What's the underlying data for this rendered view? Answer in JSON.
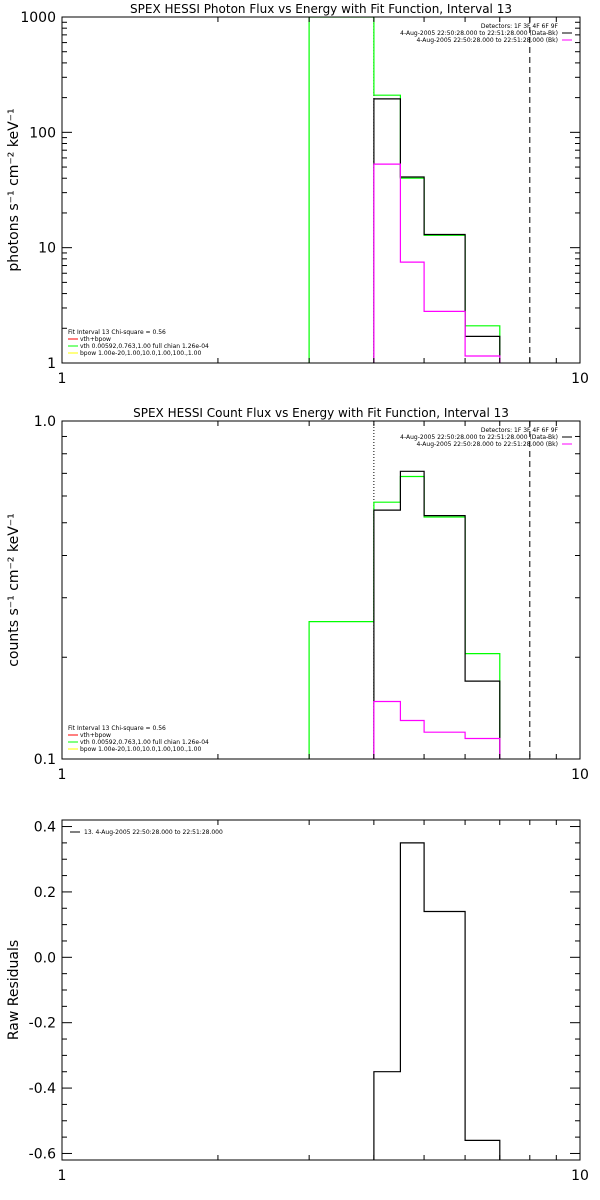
{
  "colors": {
    "data_black": "#000000",
    "bk_magenta": "#ff00ff",
    "fit_green": "#00ff00",
    "vth_red": "#ff0000",
    "vth_green": "#00ff00",
    "bpow_yellow": "#ffff00"
  },
  "chart_data": [
    {
      "type": "line",
      "title": "SPEX HESSI Photon Flux vs Energy with Fit Function, Interval 13",
      "ylabel": "photons s⁻¹ cm⁻² keV⁻¹",
      "xscale": "log",
      "yscale": "log",
      "xlim": [
        1,
        10
      ],
      "ylim": [
        1,
        1000
      ],
      "x_ticks": [
        {
          "value": 1,
          "label": "1"
        },
        {
          "value": 10,
          "label": "10"
        }
      ],
      "y_ticks": [
        {
          "value": 1,
          "label": "1"
        },
        {
          "value": 10,
          "label": "10"
        },
        {
          "value": 100,
          "label": "100"
        },
        {
          "value": 1000,
          "label": "1000"
        }
      ],
      "vlines": [
        {
          "x": 4.0,
          "style": "dotted"
        },
        {
          "x": 8.0,
          "style": "dashed"
        }
      ],
      "legend_top": [
        {
          "text": "Detectors: 1F 3F 4F 6F 9F",
          "color": ""
        },
        {
          "text": "4-Aug-2005 22:50:28.000 to 22:51:28.000 (Data-Bk)",
          "color": "#000000"
        },
        {
          "text": "4-Aug-2005 22:50:28.000 to 22:51:28.000 (Bk)",
          "color": "#ff00ff"
        }
      ],
      "legend_bottom": [
        {
          "text": "Fit Interval 13   Chi-square = 0.56",
          "color": ""
        },
        {
          "text": "vth+bpow",
          "color": "#ff0000"
        },
        {
          "text": "vth 0.00592,0.763,1.00  full chian 1.26e-04",
          "color": "#00ff00"
        },
        {
          "text": "bpow 1.00e-20,1.00,10.0,1.00,100.,1.00",
          "color": "#ffff00"
        }
      ],
      "series": [
        {
          "color": "#00ff00",
          "points": [
            [
              3.0,
              0.1
            ],
            [
              3.0,
              1050
            ],
            [
              4.0,
              1050
            ],
            [
              4.0,
              210
            ],
            [
              4.5,
              210
            ],
            [
              4.5,
              40
            ],
            [
              5.0,
              40
            ],
            [
              5.0,
              12.8
            ],
            [
              6.0,
              12.8
            ],
            [
              6.0,
              2.1
            ],
            [
              7.0,
              2.1
            ],
            [
              7.0,
              0.1
            ]
          ]
        },
        {
          "color": "#000000",
          "points": [
            [
              4.0,
              1
            ],
            [
              4.0,
              195
            ],
            [
              4.5,
              195
            ],
            [
              4.5,
              41
            ],
            [
              5.0,
              41
            ],
            [
              5.0,
              13
            ],
            [
              6.0,
              13
            ],
            [
              6.0,
              1.7
            ],
            [
              7.0,
              1.7
            ],
            [
              7.0,
              1
            ]
          ]
        },
        {
          "color": "#ff00ff",
          "points": [
            [
              4.0,
              1
            ],
            [
              4.0,
              53
            ],
            [
              4.5,
              53
            ],
            [
              4.5,
              7.5
            ],
            [
              5.0,
              7.5
            ],
            [
              5.0,
              2.8
            ],
            [
              6.0,
              2.8
            ],
            [
              6.0,
              1.15
            ],
            [
              7.0,
              1.15
            ],
            [
              7.0,
              1
            ]
          ]
        }
      ]
    },
    {
      "type": "line",
      "title": "SPEX HESSI Count Flux vs Energy with Fit Function, Interval 13",
      "ylabel": "counts s⁻¹ cm⁻² keV⁻¹",
      "xscale": "log",
      "yscale": "log",
      "xlim": [
        1,
        10
      ],
      "ylim": [
        0.1,
        1.0
      ],
      "x_ticks": [
        {
          "value": 1,
          "label": "1"
        },
        {
          "value": 10,
          "label": "10"
        }
      ],
      "y_ticks": [
        {
          "value": 0.1,
          "label": "0.1"
        },
        {
          "value": 1.0,
          "label": "1.0"
        }
      ],
      "vlines": [
        {
          "x": 4.0,
          "style": "dotted"
        },
        {
          "x": 8.0,
          "style": "dashed"
        }
      ],
      "legend_top": [
        {
          "text": "Detectors: 1F 3F 4F 6F 9F",
          "color": ""
        },
        {
          "text": "4-Aug-2005 22:50:28.000 to 22:51:28.000 (Data-Bk)",
          "color": "#000000"
        },
        {
          "text": "4-Aug-2005 22:50:28.000 to 22:51:28.000 (Bk)",
          "color": "#ff00ff"
        }
      ],
      "legend_bottom": [
        {
          "text": "Fit Interval 13   Chi-square = 0.56",
          "color": ""
        },
        {
          "text": "vth+bpow",
          "color": "#ff0000"
        },
        {
          "text": "vth 0.00592,0.763,1.00  full chian 1.26e-04",
          "color": "#00ff00"
        },
        {
          "text": "bpow 1.00e-20,1.00,10.0,1.00,100.,1.00",
          "color": "#ffff00"
        }
      ],
      "series": [
        {
          "color": "#00ff00",
          "points": [
            [
              3.0,
              0.1
            ],
            [
              3.0,
              0.255
            ],
            [
              4.0,
              0.255
            ],
            [
              4.0,
              0.575
            ],
            [
              4.5,
              0.575
            ],
            [
              4.5,
              0.685
            ],
            [
              5.0,
              0.685
            ],
            [
              5.0,
              0.52
            ],
            [
              6.0,
              0.52
            ],
            [
              6.0,
              0.205
            ],
            [
              7.0,
              0.205
            ],
            [
              7.0,
              0.1
            ]
          ]
        },
        {
          "color": "#000000",
          "points": [
            [
              4.0,
              0.1
            ],
            [
              4.0,
              0.545
            ],
            [
              4.5,
              0.545
            ],
            [
              4.5,
              0.71
            ],
            [
              5.0,
              0.71
            ],
            [
              5.0,
              0.525
            ],
            [
              6.0,
              0.525
            ],
            [
              6.0,
              0.17
            ],
            [
              7.0,
              0.17
            ],
            [
              7.0,
              0.1
            ]
          ]
        },
        {
          "color": "#ff00ff",
          "points": [
            [
              4.0,
              0.1
            ],
            [
              4.0,
              0.148
            ],
            [
              4.5,
              0.148
            ],
            [
              4.5,
              0.13
            ],
            [
              5.0,
              0.13
            ],
            [
              5.0,
              0.12
            ],
            [
              6.0,
              0.12
            ],
            [
              6.0,
              0.115
            ],
            [
              7.0,
              0.115
            ],
            [
              7.0,
              0.1
            ]
          ]
        }
      ]
    },
    {
      "type": "line",
      "title": "",
      "ylabel": "Raw Residuals",
      "xscale": "log",
      "yscale": "linear",
      "xlim": [
        1,
        10
      ],
      "ylim": [
        -0.62,
        0.42
      ],
      "x_ticks": [
        {
          "value": 1,
          "label": "1"
        },
        {
          "value": 10,
          "label": "10"
        }
      ],
      "y_ticks": [
        {
          "value": 0.4,
          "label": "0.4"
        },
        {
          "value": 0.2,
          "label": "0.2"
        },
        {
          "value": 0.0,
          "label": "0.0"
        },
        {
          "value": -0.2,
          "label": "-0.2"
        },
        {
          "value": -0.4,
          "label": "-0.4"
        },
        {
          "value": -0.6,
          "label": "-0.6"
        }
      ],
      "vlines": [],
      "legend_top": [
        {
          "text": "13.  4-Aug-2005 22:50:28.000 to 22:51:28.000",
          "color": "#000000"
        }
      ],
      "legend_bottom": [],
      "series": [
        {
          "color": "#000000",
          "points": [
            [
              4.0,
              -0.62
            ],
            [
              4.0,
              -0.35
            ],
            [
              4.5,
              -0.35
            ],
            [
              4.5,
              0.35
            ],
            [
              5.0,
              0.35
            ],
            [
              5.0,
              0.14
            ],
            [
              6.0,
              0.14
            ],
            [
              6.0,
              -0.56
            ],
            [
              7.0,
              -0.56
            ],
            [
              7.0,
              -0.62
            ]
          ]
        }
      ]
    }
  ]
}
